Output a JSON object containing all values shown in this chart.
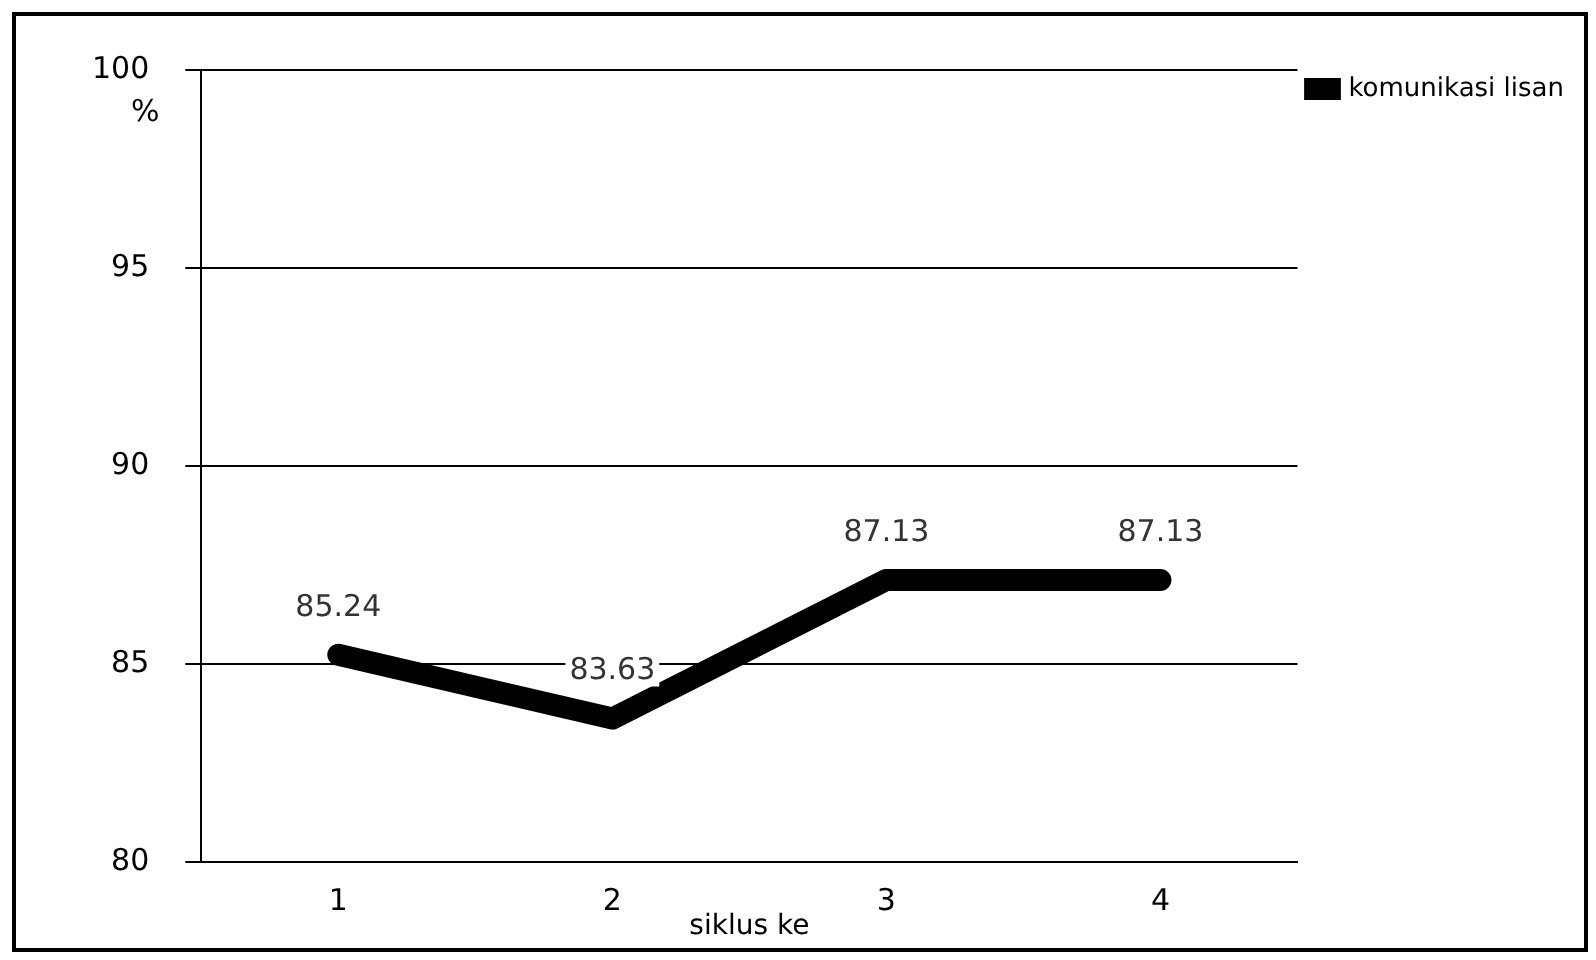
{
  "chart_data": {
    "type": "line",
    "xlabel": "siklus ke",
    "ylabel": "%",
    "categories": [
      "1",
      "2",
      "3",
      "4"
    ],
    "series": [
      {
        "name": "komunikasi lisan",
        "color": "#000000",
        "values": [
          85.24,
          83.63,
          87.13,
          87.13
        ]
      }
    ],
    "ylim": [
      80,
      100
    ],
    "yticks": [
      80,
      85,
      90,
      95,
      100
    ],
    "grid": "y",
    "legend": "top right",
    "data_labels": true,
    "marker": "none",
    "line_style": "solid"
  }
}
